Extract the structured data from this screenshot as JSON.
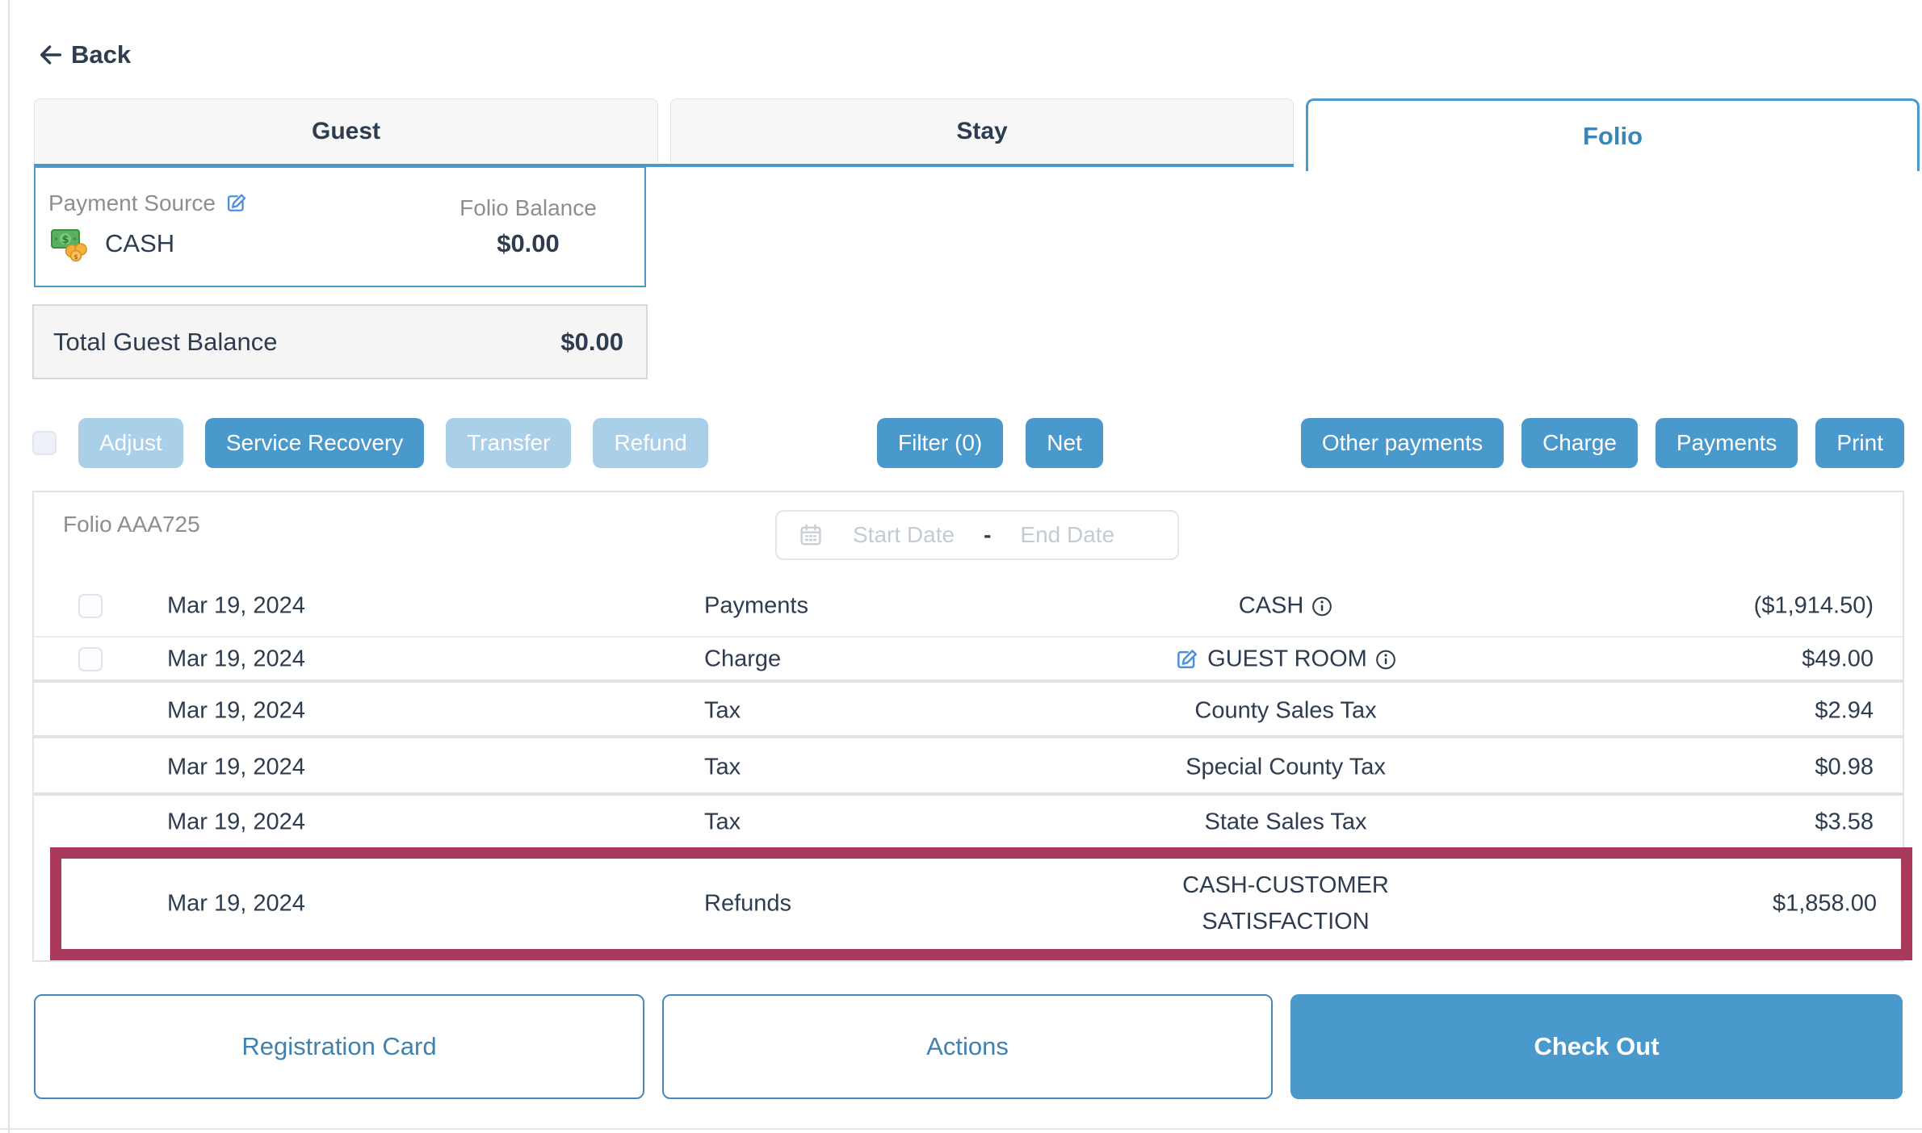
{
  "page": {
    "back_label": "Back"
  },
  "tabs": [
    {
      "label": "Guest",
      "active": false
    },
    {
      "label": "Stay",
      "active": false
    },
    {
      "label": "Folio",
      "active": true
    }
  ],
  "payment_card": {
    "label": "Payment Source",
    "method": "CASH",
    "method_icon": "cash-banknote-coins",
    "balance_label": "Folio Balance",
    "balance_value": "$0.00"
  },
  "total_balance": {
    "label": "Total Guest Balance",
    "value": "$0.00"
  },
  "toolbar": {
    "adjust_label": "Adjust",
    "service_recovery_label": "Service Recovery",
    "transfer_label": "Transfer",
    "refund_label": "Refund",
    "filter_label": "Filter (0)",
    "net_label": "Net",
    "other_payments_label": "Other payments",
    "charge_label": "Charge",
    "payments_label": "Payments",
    "print_label": "Print"
  },
  "folio": {
    "title": "Folio AAA725",
    "date_range": {
      "start_placeholder": "Start Date",
      "separator": "-",
      "end_placeholder": "End Date"
    },
    "rows": [
      {
        "date": "Mar 19, 2024",
        "type": "Payments",
        "name": "CASH",
        "amount": "($1,914.50)",
        "has_checkbox": true,
        "has_info": true,
        "has_edit": false,
        "highlighted": false
      },
      {
        "date": "Mar 19, 2024",
        "type": "Charge",
        "name": "GUEST ROOM",
        "amount": "$49.00",
        "has_checkbox": true,
        "has_info": true,
        "has_edit": true,
        "highlighted": false
      },
      {
        "date": "Mar 19, 2024",
        "type": "Tax",
        "name": "County Sales Tax",
        "amount": "$2.94",
        "has_checkbox": false,
        "has_info": false,
        "has_edit": false,
        "highlighted": false
      },
      {
        "date": "Mar 19, 2024",
        "type": "Tax",
        "name": "Special County Tax",
        "amount": "$0.98",
        "has_checkbox": false,
        "has_info": false,
        "has_edit": false,
        "highlighted": false
      },
      {
        "date": "Mar 19, 2024",
        "type": "Tax",
        "name": "State Sales Tax",
        "amount": "$3.58",
        "has_checkbox": false,
        "has_info": false,
        "has_edit": false,
        "highlighted": false
      },
      {
        "date": "Mar 19, 2024",
        "type": "Refunds",
        "name": "CASH-CUSTOMER SATISFACTION",
        "amount": "$1,858.00",
        "has_checkbox": false,
        "has_info": false,
        "has_edit": false,
        "highlighted": true
      }
    ]
  },
  "footer": {
    "registration_card_label": "Registration Card",
    "actions_label": "Actions",
    "check_out_label": "Check Out"
  },
  "colors": {
    "accent_blue": "#4a99cc",
    "disabled_button_blue": "#a9cfe9",
    "active_tab_text": "#3c85b5",
    "highlight_border": "#a93a5c",
    "dark_text": "#2e3c50",
    "muted_text": "#8e8e92",
    "placeholder_text": "#c3ccd5",
    "edit_icon_blue": "#4a90e2"
  }
}
